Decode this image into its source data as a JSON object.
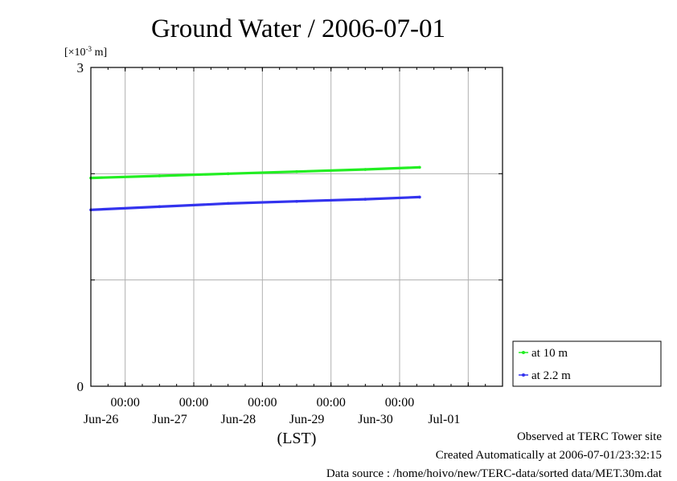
{
  "chart_data": {
    "type": "line",
    "title": "Ground Water / 2006-07-01",
    "ylabel": "[×10",
    "ylabel_exp": "-3",
    "ylabel_unit": " m]",
    "xlabel": "(LST)",
    "ylim": [
      0,
      3
    ],
    "y_ticks": [
      0,
      1,
      2,
      3
    ],
    "y_tick_labels": [
      "0",
      "3"
    ],
    "xlim": [
      "2006-06-25T12:00",
      "2006-07-01T12:00"
    ],
    "x_ticks": [
      {
        "date": "2006-06-26T00:00",
        "time": "00:00",
        "day": "Jun-26"
      },
      {
        "date": "2006-06-27T00:00",
        "time": "00:00",
        "day": "Jun-27"
      },
      {
        "date": "2006-06-28T00:00",
        "time": "00:00",
        "day": "Jun-28"
      },
      {
        "date": "2006-06-29T00:00",
        "time": "00:00",
        "day": "Jun-29"
      },
      {
        "date": "2006-06-30T00:00",
        "time": "00:00",
        "day": "Jun-30"
      },
      {
        "date": "2006-07-01T00:00",
        "time": "",
        "day": "Jul-01"
      }
    ],
    "x_tick_time_labels": [
      "00:00",
      "00:00",
      "00:00",
      "00:00",
      "00:00"
    ],
    "grid": true,
    "legend_position": "right-bottom",
    "series": [
      {
        "name": "at 10 m",
        "color": "#22ee22",
        "x": [
          "2006-06-25T12:00",
          "2006-06-26T12:00",
          "2006-06-27T12:00",
          "2006-06-28T12:00",
          "2006-06-29T12:00",
          "2006-06-30T07:00"
        ],
        "values": [
          1.96,
          1.98,
          2.0,
          2.02,
          2.04,
          2.06
        ]
      },
      {
        "name": "at 2.2 m",
        "color": "#3333ee",
        "x": [
          "2006-06-25T12:00",
          "2006-06-26T12:00",
          "2006-06-27T12:00",
          "2006-06-28T12:00",
          "2006-06-29T12:00",
          "2006-06-30T07:00"
        ],
        "values": [
          1.66,
          1.69,
          1.72,
          1.74,
          1.76,
          1.78
        ]
      }
    ]
  },
  "footer": {
    "line1": "Observed at TERC Tower site",
    "line2": "Created Automatically at 2006-07-01/23:32:15",
    "line3": "Data source : /home/hoivo/new/TERC-data/sorted  data/MET.30m.dat"
  }
}
